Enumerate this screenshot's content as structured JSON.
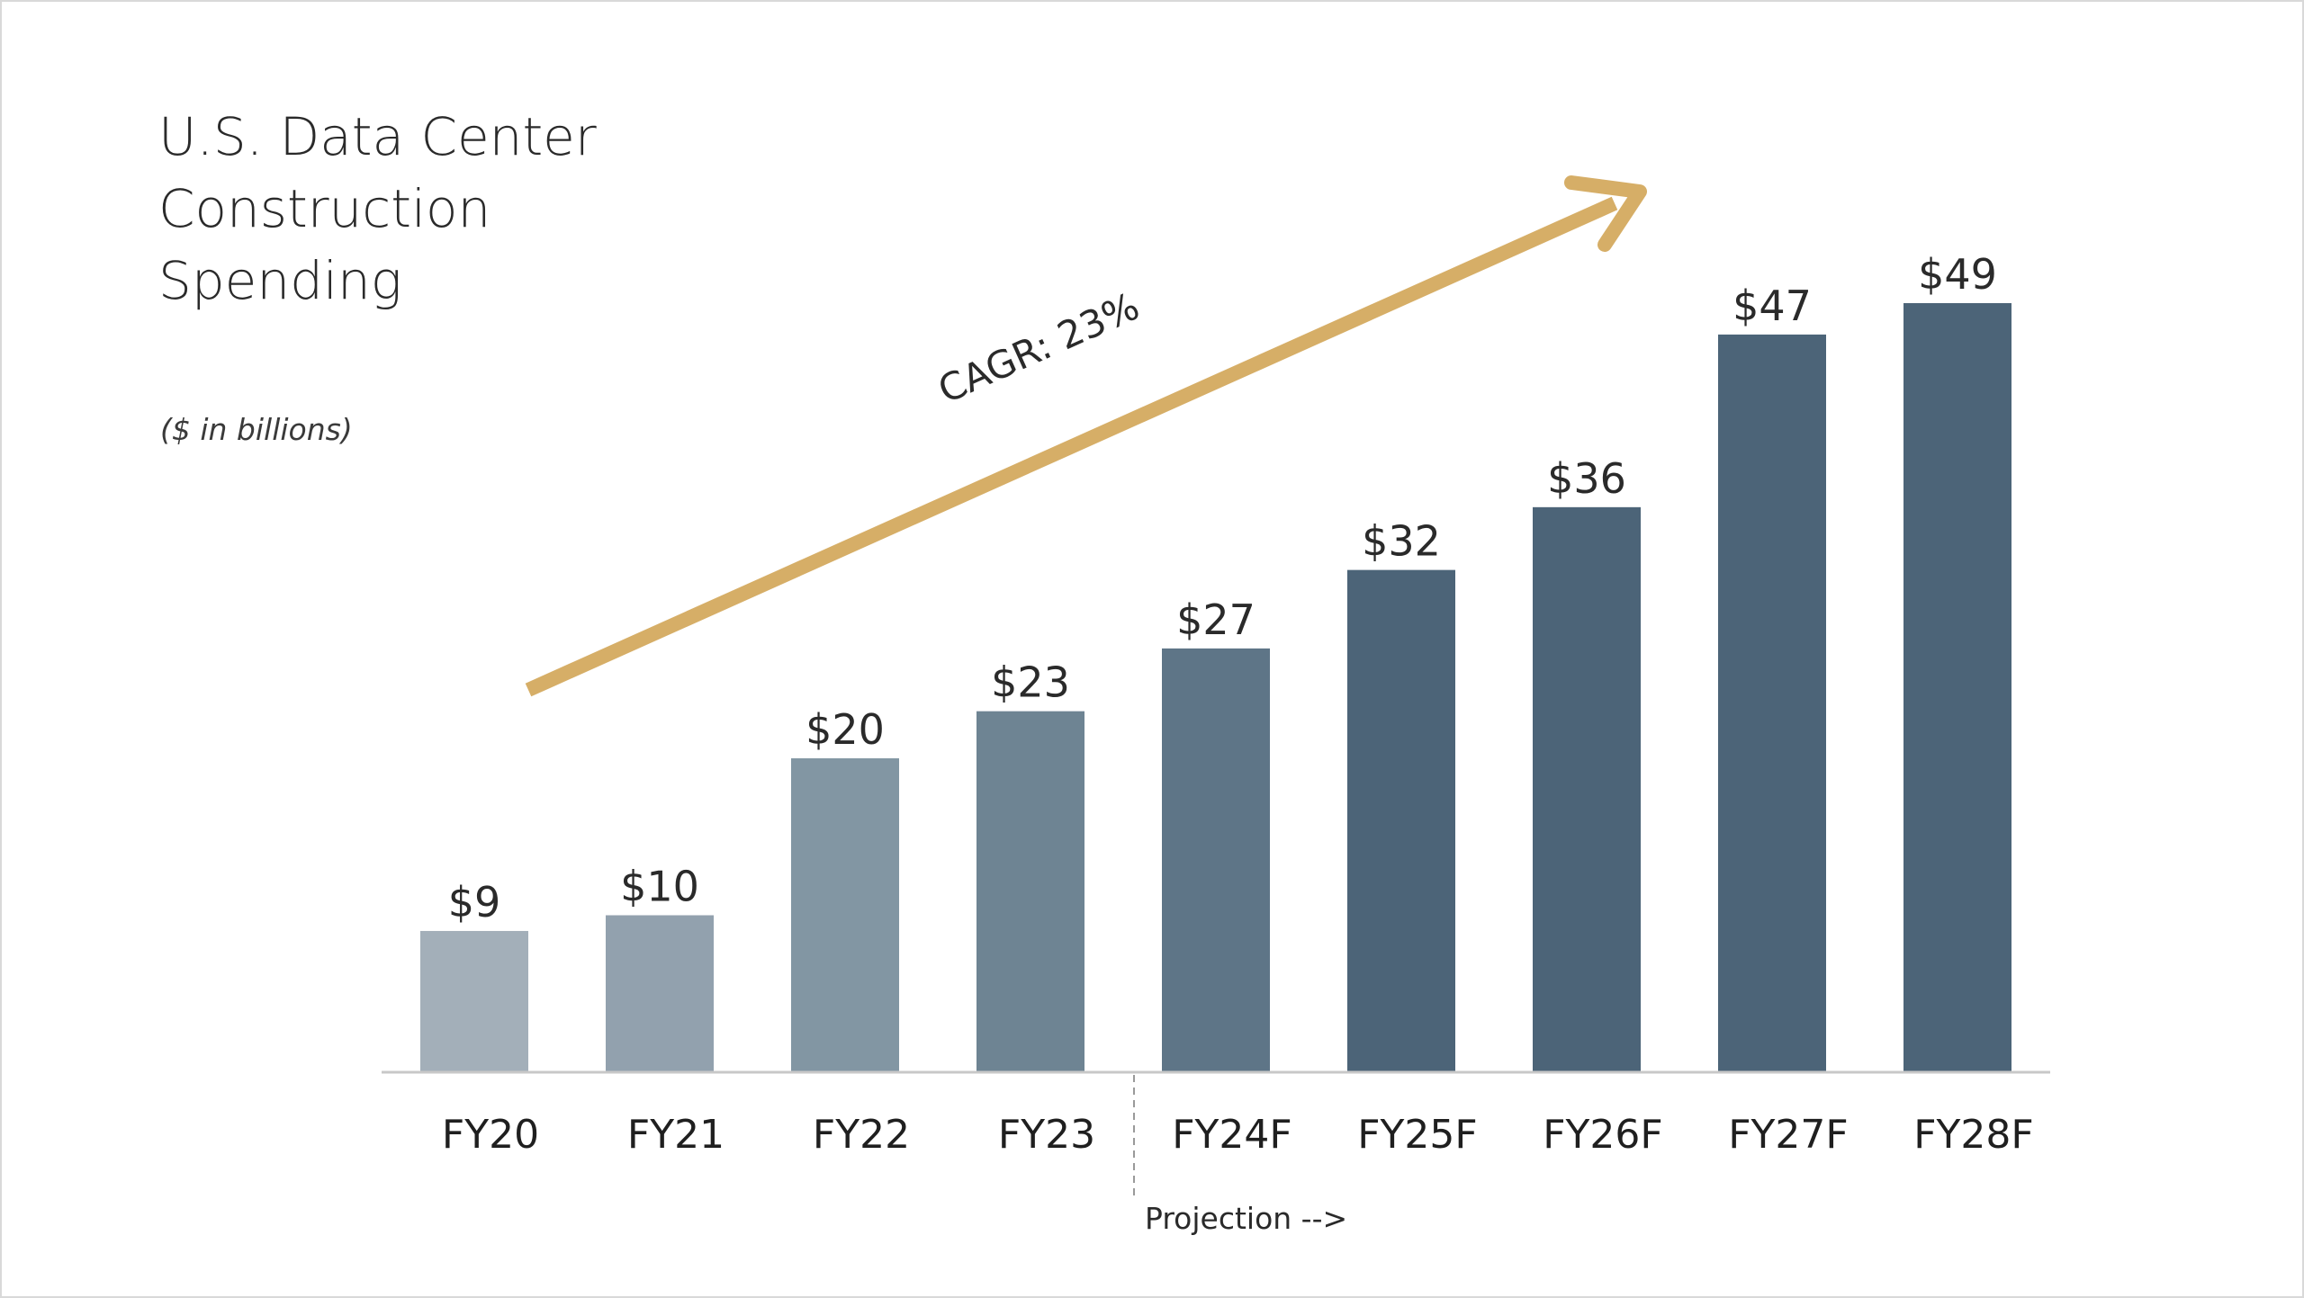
{
  "colors": {
    "arrow": "#d6ae67",
    "axis": "#c8c8c8",
    "divider": "#9a9a9a",
    "bars": [
      "#a3afb9",
      "#92a1ae",
      "#8296a3",
      "#6e8493",
      "#5e7587",
      "#4c6478",
      "#4c6478",
      "#4c6478",
      "#4c6478"
    ]
  },
  "icons": {
    "trend_arrow": "arrow-up-right-icon"
  },
  "chart_data": {
    "type": "bar",
    "title": "U.S. Data Center Construction Spending",
    "title_lines": [
      "U.S. Data Center",
      "Construction",
      "Spending"
    ],
    "subtitle": "($ in billions)",
    "categories": [
      "FY20",
      "FY21",
      "FY22",
      "FY23",
      "FY24F",
      "FY25F",
      "FY26F",
      "FY27F",
      "FY28F"
    ],
    "values": [
      9,
      10,
      20,
      23,
      27,
      32,
      36,
      47,
      49
    ],
    "value_labels": [
      "$9",
      "$10",
      "$20",
      "$23",
      "$27",
      "$32",
      "$36",
      "$47",
      "$49"
    ],
    "ylim": [
      0,
      49
    ],
    "xlabel": "",
    "ylabel": "",
    "grid": false,
    "legend": "none",
    "annotations": {
      "cagr": "CAGR: 23%",
      "projection": "Projection -->",
      "projection_starts_at": "FY24F"
    }
  }
}
